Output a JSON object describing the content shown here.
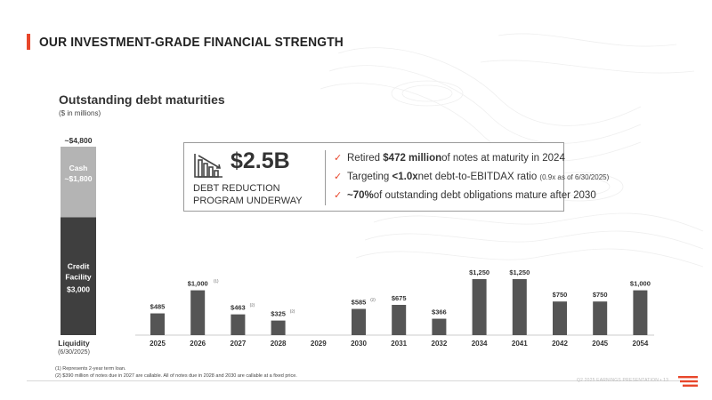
{
  "header": {
    "title": "OUR INVESTMENT-GRADE FINANCIAL STRENGTH"
  },
  "chart_title": "Outstanding debt maturities",
  "chart_unit": "($ in millions)",
  "liquidity": {
    "total_label": "~$4,800",
    "cash_label": "Cash",
    "cash_value": "~$1,800",
    "credit_label_1": "Credit",
    "credit_label_2": "Facility",
    "credit_value": "$3,000",
    "x_label": "Liquidity",
    "x_sublabel": "(6/30/2025)",
    "colors": {
      "cash": "#b4b4b4",
      "credit": "#3f3f3f"
    }
  },
  "callout": {
    "amount": "$2.5B",
    "subtitle_line1": "DEBT REDUCTION",
    "subtitle_line2": "PROGRAM UNDERWAY",
    "icon": "declining-bar-chart-icon",
    "bullets": [
      {
        "check": "✓",
        "pre": "Retired ",
        "bold": "$472 million",
        "post": " of notes at maturity in 2024",
        "small": ""
      },
      {
        "check": "✓",
        "pre": "Targeting ",
        "bold": "<1.0x",
        "post": " net debt-to-EBITDAX ratio ",
        "small": "(0.9x as of 6/30/2025)"
      },
      {
        "check": "✓",
        "pre": "",
        "bold": "~70%",
        "post": " of outstanding debt obligations mature after 2030",
        "small": ""
      }
    ]
  },
  "chart_data": {
    "type": "bar",
    "title": "Outstanding debt maturities",
    "ylabel": "($ in millions)",
    "categories": [
      "2025",
      "2026",
      "2027",
      "2028",
      "2029",
      "2030",
      "2031",
      "2032",
      "2034",
      "2041",
      "2042",
      "2045",
      "2054"
    ],
    "values": [
      485,
      1000,
      463,
      325,
      0,
      585,
      675,
      366,
      1250,
      1250,
      750,
      750,
      1000
    ],
    "labels": [
      "$485",
      "$1,000",
      "$463",
      "$325",
      "",
      "$585",
      "$675",
      "$366",
      "$1,250",
      "$1,250",
      "$750",
      "$750",
      "$1,000"
    ],
    "footnote_refs": [
      "",
      "(1)",
      "(2)",
      "(2)",
      "",
      "(2)",
      "",
      "",
      "",
      "",
      "",
      "",
      ""
    ],
    "bar_color": "#555555",
    "liquidity_stack": {
      "credit_facility": 3000,
      "cash": 1800,
      "total": 4800
    }
  },
  "footnotes": [
    "(1) Represents 2-year term loan.",
    "(2) $390 million of notes due in 2027 are callable. All of notes due in 2028 and 2030 are callable at a fixed price."
  ],
  "footer": {
    "text": "Q2 2025 EARNINGS PRESENTATION  •  13"
  }
}
